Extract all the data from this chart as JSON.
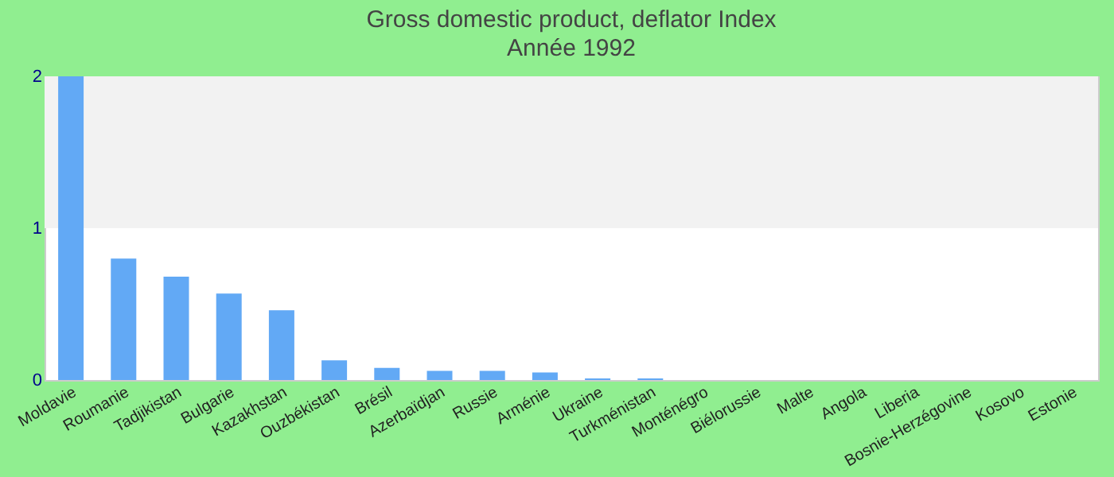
{
  "chart_data": {
    "type": "bar",
    "title": "Gross domestic product, deflator  Index",
    "subtitle": "Année 1992",
    "categories": [
      "Moldavie",
      "Roumanie",
      "Tadjikistan",
      "Bulgarie",
      "Kazakhstan",
      "Ouzbékistan",
      "Brésil",
      "Azerbaïdjan",
      "Russie",
      "Arménie",
      "Ukraine",
      "Turkménistan",
      "Monténégro",
      "Biélorussie",
      "Malte",
      "Angola",
      "Liberia",
      "Bosnie-Herzégovine",
      "Kosovo",
      "Estonie"
    ],
    "values": [
      2,
      0.8,
      0.68,
      0.57,
      0.46,
      0.13,
      0.08,
      0.06,
      0.06,
      0.05,
      0.01,
      0.01,
      0,
      0,
      0,
      0,
      0,
      0,
      0,
      0
    ],
    "color": "#62a9f5",
    "ylim": [
      0,
      2
    ],
    "yticks": [
      0,
      1,
      2
    ],
    "grid": false,
    "bands": [
      {
        "axis": "y",
        "from": 1,
        "to": 2,
        "label": null,
        "color": "#f2f2f2"
      }
    ]
  }
}
